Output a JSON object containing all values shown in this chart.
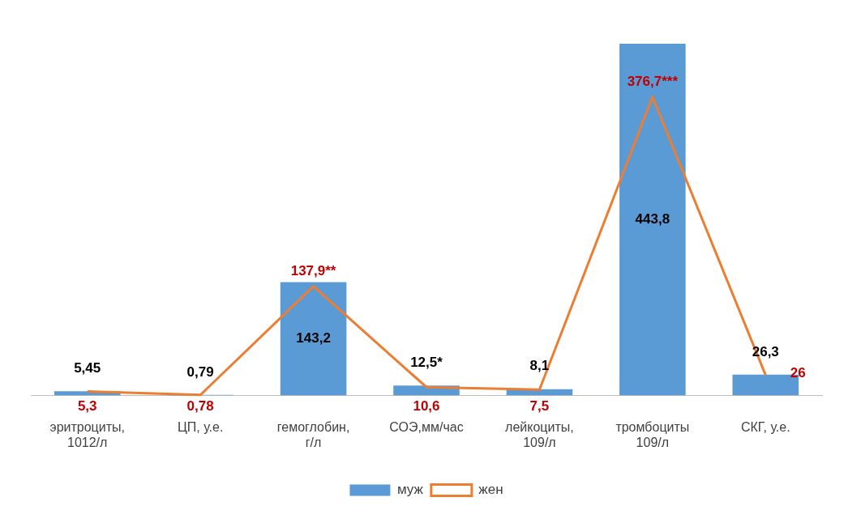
{
  "chart_data": {
    "type": "bar",
    "categories": [
      "эритроциты, 1012/л",
      "ЦП, у.е.",
      "гемоглобин, г/л",
      "СОЭ,мм/час",
      "лейкоциты, 109/л",
      "тромбоциты 109/л",
      "СКГ, у.е."
    ],
    "series": [
      {
        "name": "муж",
        "color": "#5b9bd5",
        "values": [
          5.45,
          0.79,
          143.2,
          12.5,
          8.1,
          443.8,
          26.3
        ],
        "value_labels": [
          "5,45",
          "0,79",
          "143,2",
          "12,5*",
          "8,1",
          "443,8",
          "26,3"
        ]
      },
      {
        "name": "жен",
        "type": "line",
        "color": "#ed7d31",
        "values": [
          5.3,
          0.78,
          137.9,
          10.6,
          7.5,
          376.7,
          26
        ],
        "value_labels": [
          "5,3",
          "0,78",
          "137,9**",
          "10,6",
          "7,5",
          "376,7***",
          "26"
        ]
      }
    ],
    "legend": "bottom",
    "grid": false,
    "marker": "none",
    "line_style": "solid"
  }
}
